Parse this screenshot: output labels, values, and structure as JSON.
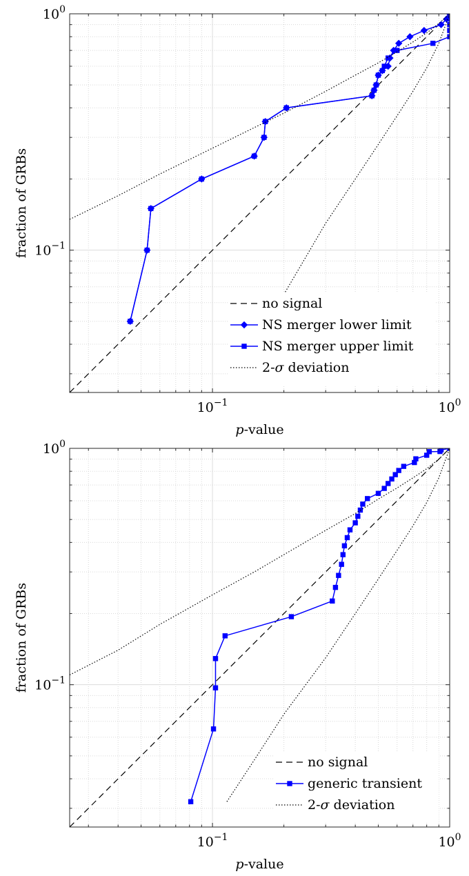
{
  "chart_data": [
    {
      "type": "line",
      "xscale": "log",
      "yscale": "log",
      "xlabel_italic": "p",
      "xlabel_rest": "-value",
      "ylabel": "fraction of GRBs",
      "xlim": [
        0.025,
        1
      ],
      "ylim": [
        0.025,
        1
      ],
      "grid": true,
      "legend_placement": "bottom-right",
      "xticks": [
        {
          "value": 0.1,
          "base": "10",
          "exp": "−1"
        },
        {
          "value": 1,
          "base": "10",
          "exp": "0"
        }
      ],
      "yticks": [
        {
          "value": 0.1,
          "base": "10",
          "exp": "−1"
        },
        {
          "value": 1,
          "base": "10",
          "exp": "0"
        }
      ],
      "series": [
        {
          "name": "no signal",
          "style": "dashed",
          "color": "#000000",
          "marker": "none",
          "x": [
            0.025,
            1
          ],
          "y": [
            0.025,
            1
          ]
        },
        {
          "name": "NS merger lower limit",
          "style": "solid",
          "color": "#0000ff",
          "marker": "diamond",
          "x": [
            0.045,
            0.053,
            0.055,
            0.09,
            0.15,
            0.165,
            0.167,
            0.205,
            0.47,
            0.48,
            0.49,
            0.5,
            0.52,
            0.55,
            0.56,
            0.58,
            0.61,
            0.68,
            0.78,
            0.92,
            0.97,
            1.0
          ],
          "y": [
            0.05,
            0.1,
            0.15,
            0.2,
            0.25,
            0.3,
            0.35,
            0.4,
            0.45,
            0.475,
            0.5,
            0.55,
            0.575,
            0.6,
            0.65,
            0.7,
            0.75,
            0.8,
            0.85,
            0.9,
            0.95,
            1.0
          ]
        },
        {
          "name": "NS merger upper limit",
          "style": "solid",
          "color": "#0000ff",
          "marker": "square",
          "x": [
            0.045,
            0.053,
            0.055,
            0.09,
            0.15,
            0.165,
            0.167,
            0.205,
            0.47,
            0.48,
            0.49,
            0.5,
            0.52,
            0.53,
            0.55,
            0.6,
            0.85,
            1.0,
            1.0,
            1.0,
            1.0,
            1.0
          ],
          "y": [
            0.05,
            0.1,
            0.15,
            0.2,
            0.25,
            0.3,
            0.35,
            0.4,
            0.45,
            0.475,
            0.5,
            0.55,
            0.575,
            0.6,
            0.65,
            0.7,
            0.75,
            0.8,
            0.85,
            0.9,
            0.95,
            1.0
          ]
        },
        {
          "name": "2-σ deviation",
          "legend_sigma_prefix": "2-",
          "legend_sigma": "σ",
          "legend_sigma_suffix": " deviation",
          "style": "dotted",
          "color": "#000000",
          "marker": "none",
          "x": [
            0.025,
            0.04,
            0.06,
            0.1,
            0.15,
            0.2,
            0.3,
            0.4,
            0.5,
            0.6,
            0.7,
            0.8,
            0.9,
            1.0
          ],
          "y": [
            0.135,
            0.17,
            0.21,
            0.27,
            0.33,
            0.38,
            0.47,
            0.55,
            0.62,
            0.69,
            0.76,
            0.83,
            0.91,
            1.0
          ],
          "x2": [
            0.2,
            0.3,
            0.4,
            0.5,
            0.6,
            0.7,
            0.8,
            0.9,
            1.0
          ],
          "y2": [
            0.065,
            0.13,
            0.2,
            0.28,
            0.37,
            0.47,
            0.59,
            0.75,
            1.0
          ]
        }
      ]
    },
    {
      "type": "line",
      "xscale": "log",
      "yscale": "log",
      "xlabel_italic": "p",
      "xlabel_rest": "-value",
      "ylabel": "fraction of GRBs",
      "xlim": [
        0.025,
        1
      ],
      "ylim": [
        0.025,
        1
      ],
      "grid": true,
      "legend_placement": "bottom-right",
      "xticks": [
        {
          "value": 0.1,
          "base": "10",
          "exp": "−1"
        },
        {
          "value": 1,
          "base": "10",
          "exp": "0"
        }
      ],
      "yticks": [
        {
          "value": 0.1,
          "base": "10",
          "exp": "−1"
        },
        {
          "value": 1,
          "base": "10",
          "exp": "0"
        }
      ],
      "series": [
        {
          "name": "no signal",
          "style": "dashed",
          "color": "#000000",
          "marker": "none",
          "x": [
            0.025,
            1
          ],
          "y": [
            0.025,
            1
          ]
        },
        {
          "name": "generic transient",
          "style": "solid",
          "color": "#0000ff",
          "marker": "square",
          "x": [
            0.081,
            0.101,
            0.103,
            0.103,
            0.113,
            0.215,
            0.32,
            0.33,
            0.34,
            0.35,
            0.355,
            0.36,
            0.37,
            0.38,
            0.4,
            0.41,
            0.42,
            0.43,
            0.45,
            0.5,
            0.53,
            0.55,
            0.57,
            0.59,
            0.61,
            0.64,
            0.71,
            0.72,
            0.8,
            0.82,
            0.91,
            0.92,
            1.0
          ],
          "y": [
            0.032,
            0.065,
            0.097,
            0.129,
            0.161,
            0.194,
            0.226,
            0.258,
            0.29,
            0.323,
            0.355,
            0.387,
            0.419,
            0.452,
            0.484,
            0.516,
            0.548,
            0.581,
            0.613,
            0.645,
            0.677,
            0.71,
            0.742,
            0.774,
            0.806,
            0.839,
            0.871,
            0.903,
            0.935,
            0.968,
            0.97,
            0.985,
            1.0
          ]
        },
        {
          "name": "2-σ deviation",
          "legend_sigma_prefix": "2-",
          "legend_sigma": "σ",
          "legend_sigma_suffix": " deviation",
          "style": "dotted",
          "color": "#000000",
          "marker": "none",
          "x": [
            0.025,
            0.04,
            0.06,
            0.1,
            0.15,
            0.2,
            0.3,
            0.4,
            0.5,
            0.6,
            0.7,
            0.8,
            0.9,
            1.0
          ],
          "y": [
            0.11,
            0.14,
            0.18,
            0.24,
            0.3,
            0.355,
            0.45,
            0.53,
            0.61,
            0.68,
            0.75,
            0.82,
            0.9,
            1.0
          ],
          "x2": [
            0.115,
            0.15,
            0.2,
            0.3,
            0.4,
            0.5,
            0.6,
            0.7,
            0.8,
            0.9,
            1.0
          ],
          "y2": [
            0.032,
            0.048,
            0.075,
            0.13,
            0.2,
            0.28,
            0.37,
            0.47,
            0.59,
            0.75,
            1.0
          ]
        }
      ]
    }
  ]
}
